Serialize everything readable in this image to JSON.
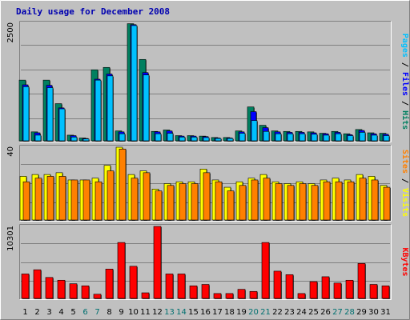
{
  "chart_data": {
    "type": "bar",
    "title": "Daily usage for December 2008",
    "colors": {
      "background": "#c0c0c0",
      "title": "#0000b0",
      "hits": "#008060",
      "files": "#0000ff",
      "pages": "#00c0ff",
      "visits": "#ffff00",
      "sites": "#ff8000",
      "kbytes": "#ff0000",
      "weekend_label": "#007070",
      "weekday_label": "#000000",
      "gridline": "#808080"
    },
    "days": [
      "1",
      "2",
      "3",
      "4",
      "5",
      "6",
      "7",
      "8",
      "9",
      "10",
      "11",
      "12",
      "13",
      "14",
      "15",
      "16",
      "17",
      "18",
      "19",
      "20",
      "21",
      "22",
      "23",
      "24",
      "25",
      "26",
      "27",
      "28",
      "29",
      "30",
      "31"
    ],
    "weekend_days": [
      "6",
      "7",
      "13",
      "14",
      "20",
      "21",
      "27",
      "28"
    ],
    "panels": {
      "top": {
        "ymax_label": "2500",
        "ymax": 2500,
        "right_label_parts": [
          {
            "text": "Pages",
            "color": "#00c0ff"
          },
          {
            "text": " / ",
            "color": "#000000"
          },
          {
            "text": "Files",
            "color": "#0000ff"
          },
          {
            "text": " / ",
            "color": "#000000"
          },
          {
            "text": "Hits",
            "color": "#008060"
          }
        ],
        "series": [
          {
            "name": "Hits",
            "values": [
              1290,
              190,
              1290,
              790,
              120,
              60,
              1510,
              1560,
              210,
              2490,
              1730,
              200,
              230,
              110,
              110,
              100,
              70,
              70,
              210,
              720,
              330,
              210,
              200,
              200,
              190,
              160,
              200,
              150,
              240,
              170,
              160
            ]
          },
          {
            "name": "Files",
            "values": [
              1190,
              170,
              1180,
              700,
              110,
              50,
              1310,
              1420,
              190,
              2470,
              1450,
              190,
              210,
              100,
              100,
              90,
              60,
              60,
              190,
              620,
              280,
              190,
              180,
              180,
              170,
              150,
              180,
              130,
              220,
              150,
              140
            ]
          },
          {
            "name": "Pages",
            "values": [
              1150,
              120,
              1130,
              680,
              80,
              40,
              1290,
              1380,
              150,
              2450,
              1400,
              150,
              160,
              80,
              80,
              70,
              50,
              50,
              160,
              430,
              200,
              150,
              150,
              150,
              140,
              120,
              150,
              110,
              180,
              120,
              110
            ]
          }
        ]
      },
      "middle": {
        "ymax_label": "40",
        "ymax": 40,
        "right_label_parts": [
          {
            "text": "Sites",
            "color": "#ff8000"
          },
          {
            "text": " / ",
            "color": "#000000"
          },
          {
            "text": "Visits",
            "color": "#ffff00"
          }
        ],
        "series": [
          {
            "name": "Visits",
            "values": [
              24,
              25,
              25,
              26,
              22,
              22,
              23,
              30,
              40,
              25,
              27,
              17,
              20,
              21,
              21,
              28,
              22,
              18,
              21,
              23,
              25,
              21,
              20,
              21,
              20,
              22,
              23,
              22,
              25,
              24,
              19
            ]
          },
          {
            "name": "Sites",
            "values": [
              21,
              23,
              24,
              24,
              22,
              22,
              21,
              27,
              39,
              23,
              26,
              16,
              19,
              20,
              20,
              26,
              21,
              16,
              19,
              22,
              23,
              20,
              19,
              20,
              19,
              21,
              21,
              21,
              23,
              22,
              18
            ]
          }
        ]
      },
      "bottom": {
        "ymax_label": "10301",
        "ymax": 10301,
        "right_label_parts": [
          {
            "text": "KBytes",
            "color": "#ff0000"
          }
        ],
        "series": [
          {
            "name": "KBytes",
            "values": [
              3500,
              4100,
              3000,
              2600,
              2100,
              1800,
              600,
              4200,
              8000,
              4600,
              800,
              10301,
              3500,
              3500,
              1800,
              2000,
              700,
              700,
              1300,
              1000,
              8000,
              3900,
              3400,
              700,
              2400,
              3100,
              2200,
              2600,
              5000,
              2000,
              1800
            ]
          }
        ]
      }
    }
  }
}
